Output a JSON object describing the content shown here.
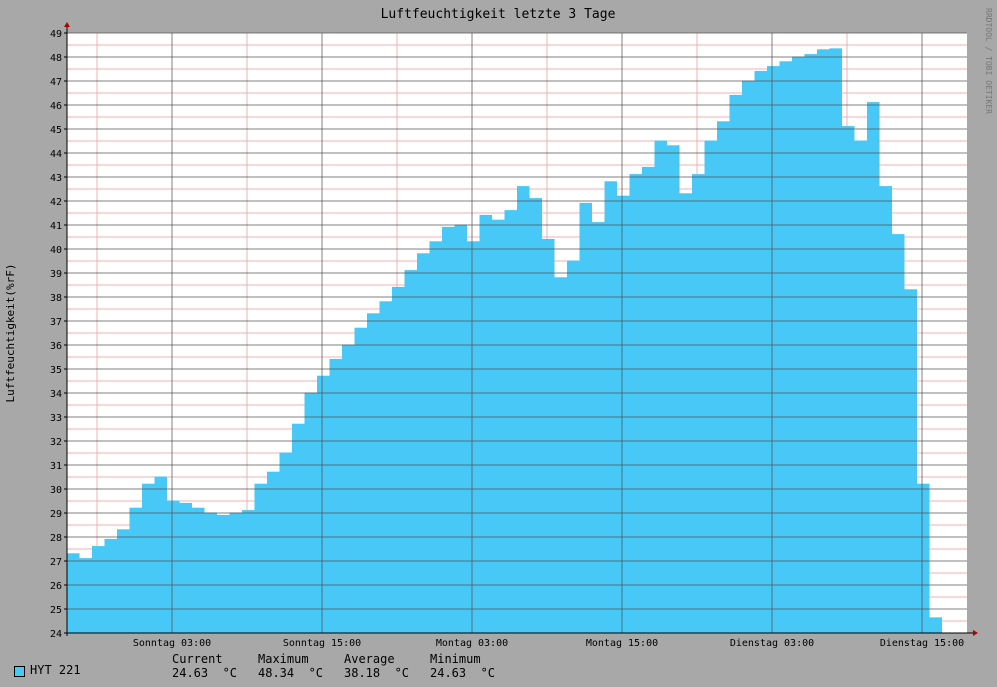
{
  "chart_data": {
    "type": "area",
    "title": "Luftfeuchtigkeit letzte 3 Tage",
    "ylabel": "Luftfeuchtigkeit(%rF)",
    "watermark": "RRDTOOL / TOBI OETIKER",
    "ylim": [
      24,
      49
    ],
    "y_ticks": [
      24,
      25,
      26,
      27,
      28,
      29,
      30,
      31,
      32,
      33,
      34,
      35,
      36,
      37,
      38,
      39,
      40,
      41,
      42,
      43,
      44,
      45,
      46,
      47,
      48,
      49
    ],
    "x_range_hours": [
      -24,
      48
    ],
    "x_ticks": [
      {
        "hour": 0,
        "label": "Sonntag 03:00"
      },
      {
        "hour": 12,
        "label": "Sonntag 15:00"
      },
      {
        "hour": 24,
        "label": "Montag 03:00"
      },
      {
        "hour": 36,
        "label": "Montag 15:00"
      },
      {
        "hour": 48,
        "label": "Dienstag 03:00"
      },
      {
        "hour": 60,
        "label": "Dienstag 15:00"
      }
    ],
    "x_domain_hours": [
      -8.4,
      63.6
    ],
    "step_hours": 1,
    "series": [
      {
        "name": "HYT 221",
        "color": "#47c8f6",
        "start_hour": -8.4,
        "values": [
          27.3,
          27.1,
          27.6,
          27.9,
          28.3,
          29.2,
          30.2,
          30.5,
          29.5,
          29.4,
          29.2,
          29.0,
          28.9,
          29.0,
          29.1,
          30.2,
          30.7,
          31.5,
          32.7,
          34.0,
          34.7,
          35.4,
          36.0,
          36.7,
          37.3,
          37.8,
          38.4,
          39.1,
          39.8,
          40.3,
          40.9,
          41.0,
          40.3,
          41.4,
          41.2,
          41.6,
          42.6,
          42.1,
          40.4,
          38.8,
          39.5,
          41.9,
          41.1,
          42.8,
          42.2,
          43.1,
          43.4,
          44.5,
          44.3,
          42.3,
          43.1,
          44.5,
          45.3,
          46.4,
          47.0,
          47.4,
          47.6,
          47.8,
          48.0,
          48.1,
          48.3,
          48.34,
          45.1,
          44.5,
          46.1,
          42.6,
          40.6,
          38.3,
          30.2,
          24.63
        ]
      }
    ],
    "grid": true
  },
  "legend": {
    "series_name": "HYT 221",
    "headers": {
      "current": "Current",
      "maximum": "Maximum",
      "average": "Average",
      "minimum": "Minimum"
    },
    "values": {
      "current": "24.63  °C",
      "maximum": "48.34  °C",
      "average": "38.18  °C",
      "minimum": "24.63  °C"
    }
  }
}
